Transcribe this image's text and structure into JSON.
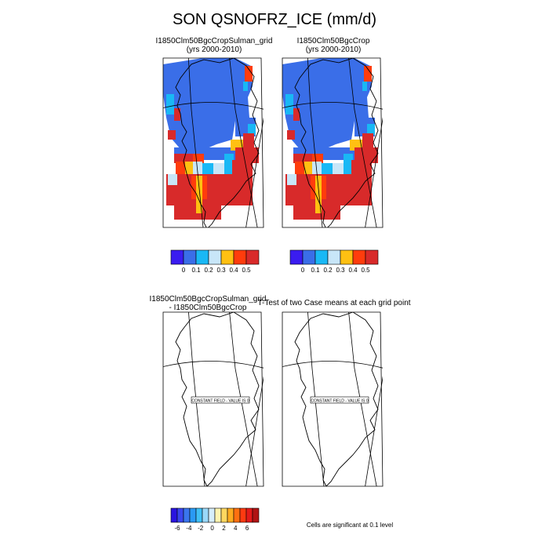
{
  "title": "SON QSNOFRZ_ICE (mm/d)",
  "panels": [
    {
      "id": "p1",
      "line1": "I1850Clm50BgcCropSulman_grid",
      "line2": "(yrs 2000-2010)"
    },
    {
      "id": "p2",
      "line1": "I1850Clm50BgcCrop",
      "line2": "(yrs 2000-2010)"
    },
    {
      "id": "p3",
      "line1": "I1850Clm50BgcCropSulman_grid",
      "line2": "- I1850Clm50BgcCrop",
      "note": "CONSTANT FIELD - VALUE IS 0"
    },
    {
      "id": "p4",
      "line1": "T-Test of two Case means at each grid point",
      "line2": "",
      "note": "CONSTANT FIELD - VALUE IS 0"
    }
  ],
  "colorbar_top": {
    "colors": [
      "#3a1cf0",
      "#3a6ee8",
      "#19b8f5",
      "#c8e6f8",
      "#ffc012",
      "#ff3c0c",
      "#d82a2a"
    ],
    "labels": [
      "0",
      "0.1",
      "0.2",
      "0.3",
      "0.4",
      "0.5"
    ]
  },
  "colorbar_bottom": {
    "colors": [
      "#2a14e0",
      "#3a46ee",
      "#3a76ee",
      "#2a9af4",
      "#40c0f6",
      "#9ad8f8",
      "#d6eefa",
      "#fff4b0",
      "#ffd860",
      "#ffac20",
      "#ff7010",
      "#ff3a10",
      "#e41a1a",
      "#b01414"
    ],
    "labels": [
      "-6",
      "-4",
      "-2",
      "0",
      "2",
      "4",
      "6"
    ]
  },
  "footnote": "Cells are significant at 0.1 level",
  "chart_data": {
    "type": "heatmap",
    "title": "SON QSNOFRZ_ICE (mm/d)",
    "variable": "QSNOFRZ_ICE",
    "units": "mm/d",
    "season": "SON",
    "region": "Greenland",
    "panels": [
      {
        "case": "I1850Clm50BgcCropSulman_grid",
        "years": "2000-2010",
        "range": [
          0,
          0.5
        ]
      },
      {
        "case": "I1850Clm50BgcCrop",
        "years": "2000-2010",
        "range": [
          0,
          0.5
        ]
      },
      {
        "case": "I1850Clm50BgcCropSulman_grid - I1850Clm50BgcCrop",
        "constant_value": 0
      },
      {
        "case": "T-Test of two Case means at each grid point",
        "constant_value": 0,
        "significance_level": 0.1
      }
    ],
    "colorbar_levels_top": [
      0,
      0.1,
      0.2,
      0.3,
      0.4,
      0.5
    ],
    "colorbar_levels_bottom": [
      -6,
      -4,
      -2,
      0,
      2,
      4,
      6
    ]
  }
}
